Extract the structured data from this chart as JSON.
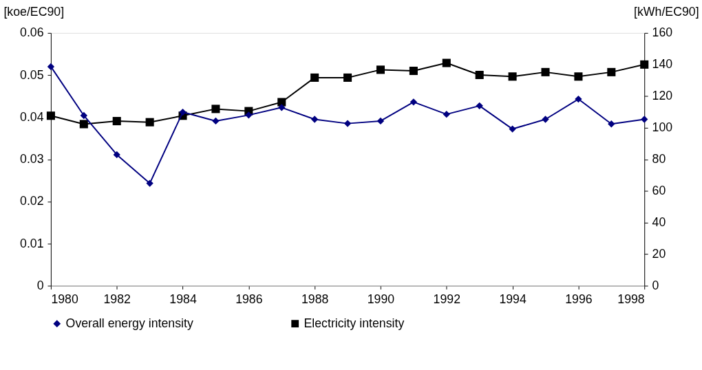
{
  "chart_data": {
    "type": "line",
    "ylabel": "[koe/EC90]",
    "y2label": "[kWh/EC90]",
    "x": [
      1980,
      1981,
      1982,
      1983,
      1984,
      1985,
      1986,
      1987,
      1988,
      1989,
      1990,
      1991,
      1992,
      1993,
      1994,
      1995,
      1996,
      1997,
      1998
    ],
    "series": [
      {
        "name": "Overall energy intensity",
        "color": "#000080",
        "marker": "diamond",
        "values": [
          0.052,
          0.0404,
          0.0311,
          0.0243,
          0.0412,
          0.0391,
          0.0405,
          0.0423,
          0.0395,
          0.0385,
          0.0391,
          0.0436,
          0.0407,
          0.0427,
          0.0372,
          0.0395,
          0.0443,
          0.0384,
          0.0395
        ]
      },
      {
        "name": "Electricity intensity",
        "color": "#000000",
        "marker": "square",
        "axis": "y2",
        "values": [
          107.6,
          102.3,
          104.2,
          103.5,
          107.6,
          111.9,
          110.5,
          116.2,
          131.7,
          131.7,
          136.7,
          136.0,
          141.0,
          133.4,
          132.4,
          135.2,
          132.4,
          135.2,
          140.0
        ]
      }
    ],
    "xlim": [
      1980,
      1998
    ],
    "xticks": [
      1980,
      1982,
      1984,
      1986,
      1988,
      1990,
      1992,
      1994,
      1996,
      1998
    ],
    "ylim": [
      0,
      0.06
    ],
    "yticks": [
      0,
      0.01,
      0.02,
      0.03,
      0.04,
      0.05,
      0.06
    ],
    "y2lim": [
      0,
      160
    ],
    "y2ticks": [
      0,
      20,
      40,
      60,
      80,
      100,
      120,
      140,
      160
    ],
    "line_style": "solid",
    "grid": false,
    "legend": "bottom"
  }
}
